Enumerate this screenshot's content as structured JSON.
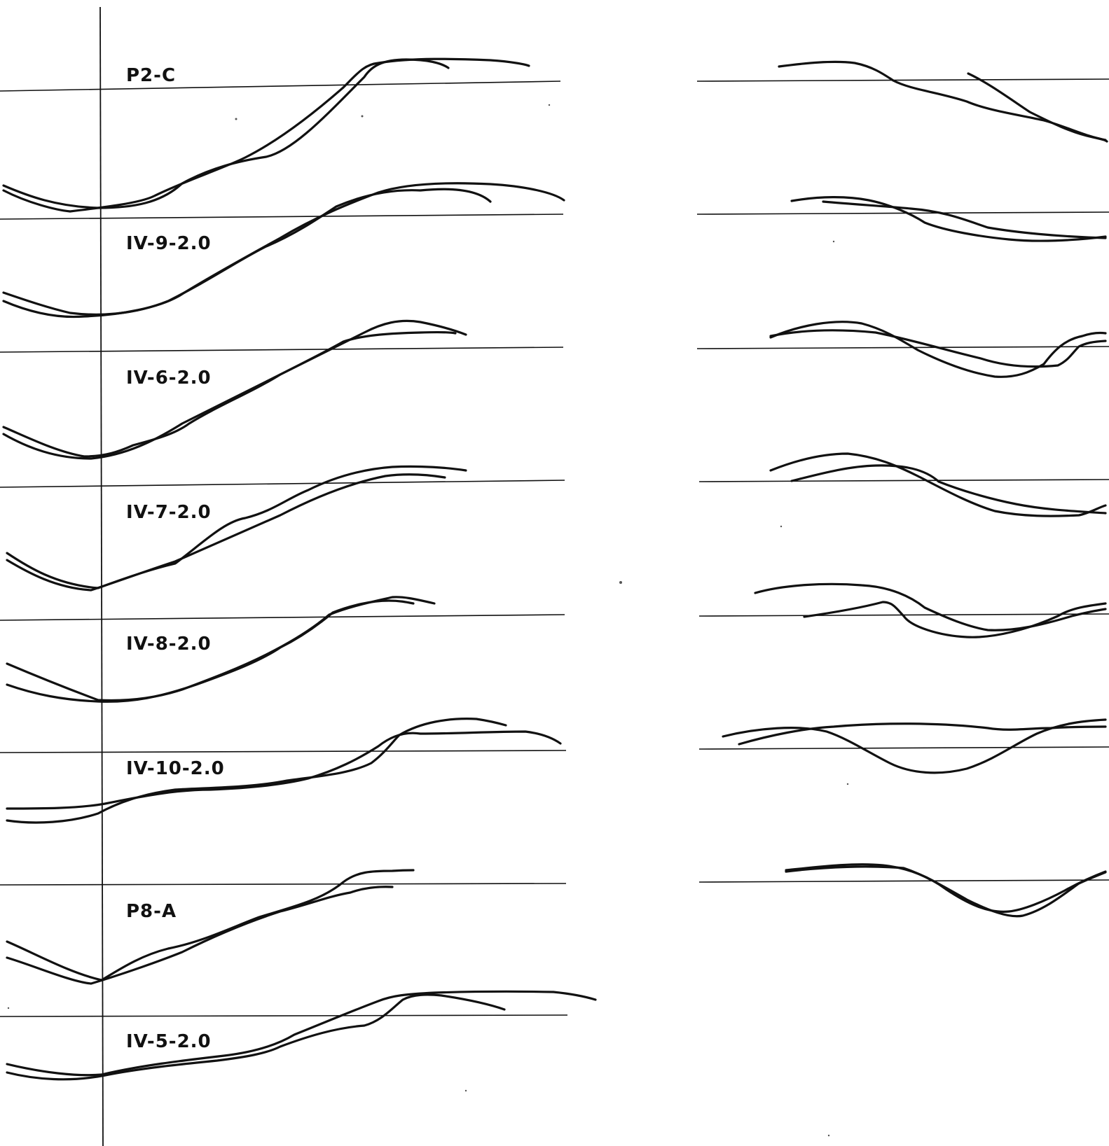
{
  "figure": {
    "colors": {
      "ink": "#111111",
      "paper": "#ffffff"
    },
    "runs": [
      {
        "id": "p2c",
        "label": "P2-C"
      },
      {
        "id": "iv9",
        "label": "IV-9-2.0"
      },
      {
        "id": "iv6",
        "label": "IV-6-2.0"
      },
      {
        "id": "iv7",
        "label": "IV-7-2.0"
      },
      {
        "id": "iv8",
        "label": "IV-8-2.0"
      },
      {
        "id": "iv10",
        "label": "IV-10-2.0"
      },
      {
        "id": "p8a",
        "label": "P8-A"
      },
      {
        "id": "iv5",
        "label": "IV-5-2.0"
      }
    ]
  }
}
